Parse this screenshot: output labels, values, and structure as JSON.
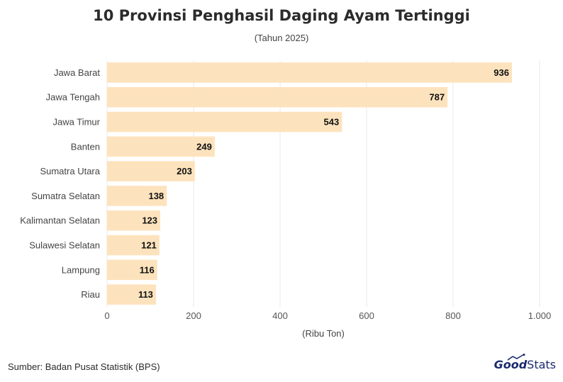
{
  "header": {
    "title": "10 Provinsi Penghasil Daging Ayam Tertinggi",
    "subtitle": "(Tahun 2025)"
  },
  "footer": {
    "source": "Sumber: Badan Pusat Statistik (BPS)",
    "brand_bold": "Good",
    "brand_light": "Stats"
  },
  "colors": {
    "bar": "#fde3bd",
    "grid": "#e8e8e8",
    "brand": "#1a2a6c"
  },
  "chart_data": {
    "type": "bar",
    "orientation": "horizontal",
    "title": "10 Provinsi Penghasil Daging Ayam Tertinggi",
    "subtitle": "(Tahun 2025)",
    "xlabel": "(Ribu Ton)",
    "ylabel": "",
    "xlim": [
      0,
      1000
    ],
    "xticks": [
      0,
      200,
      400,
      600,
      800,
      1000
    ],
    "xtick_labels": [
      "0",
      "200",
      "400",
      "600",
      "800",
      "1.000"
    ],
    "grid": true,
    "categories": [
      "Jawa Barat",
      "Jawa Tengah",
      "Jawa Timur",
      "Banten",
      "Sumatra Utara",
      "Sumatra Selatan",
      "Kalimantan Selatan",
      "Sulawesi Selatan",
      "Lampung",
      "Riau"
    ],
    "values": [
      936,
      787,
      543,
      249,
      203,
      138,
      123,
      121,
      116,
      113
    ],
    "value_labels": [
      "936",
      "787",
      "543",
      "249",
      "203",
      "138",
      "123",
      "121",
      "116",
      "113"
    ]
  }
}
